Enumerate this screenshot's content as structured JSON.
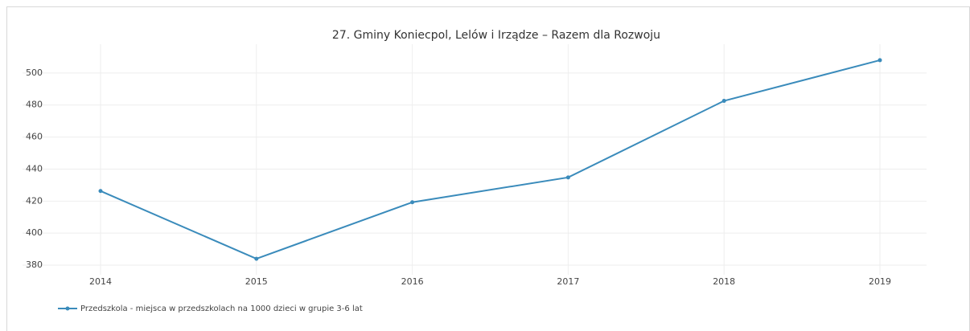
{
  "chart_data": {
    "type": "line",
    "title": "27. Gminy Koniecpol, Lelów  i Irządze – Razem dla Rozwoju",
    "categories": [
      "2014",
      "2015",
      "2016",
      "2017",
      "2018",
      "2019"
    ],
    "series": [
      {
        "name": "Przedszkola - miejsca w przedszkolach na 1000 dzieci w grupie 3-6 lat",
        "color": "#3a8bbb",
        "values": [
          426.3,
          384,
          419.3,
          434.8,
          482.6,
          508
        ]
      }
    ],
    "ylim": [
      374,
      518
    ],
    "yticks": [
      380,
      400,
      420,
      440,
      460,
      480,
      500
    ],
    "grid": true
  }
}
